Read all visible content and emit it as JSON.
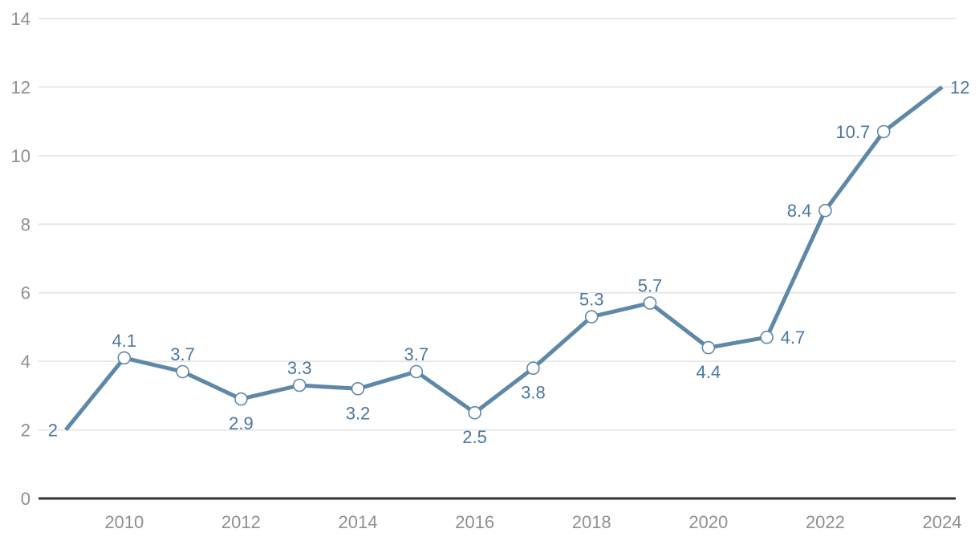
{
  "chart_data": {
    "type": "line",
    "title": "",
    "xlabel": "",
    "ylabel": "",
    "x": [
      2009,
      2010,
      2011,
      2012,
      2013,
      2014,
      2015,
      2016,
      2017,
      2018,
      2019,
      2020,
      2021,
      2022,
      2023,
      2024
    ],
    "series": [
      {
        "name": "value",
        "values": [
          2,
          4.1,
          3.7,
          2.9,
          3.3,
          3.2,
          3.7,
          2.5,
          3.8,
          5.3,
          5.7,
          4.4,
          4.7,
          8.4,
          10.7,
          12
        ]
      }
    ],
    "point_labels": [
      "2",
      "4.1",
      "3.7",
      "2.9",
      "3.3",
      "3.2",
      "3.7",
      "2.5",
      "3.8",
      "5.3",
      "5.7",
      "4.4",
      "4.7",
      "8.4",
      "10.7",
      "12"
    ],
    "label_placement": [
      "left",
      "above",
      "above",
      "below",
      "above",
      "below",
      "above",
      "below",
      "below",
      "above",
      "above",
      "below",
      "right",
      "left",
      "left",
      "right"
    ],
    "point_has_marker": [
      false,
      true,
      true,
      true,
      true,
      true,
      true,
      true,
      true,
      true,
      true,
      true,
      true,
      true,
      true,
      false
    ],
    "x_tick_years": [
      2010,
      2012,
      2014,
      2016,
      2018,
      2020,
      2022,
      2024
    ],
    "x_tick_labels": [
      "2010",
      "2012",
      "2014",
      "2016",
      "2018",
      "2020",
      "2022",
      "2024"
    ],
    "y_ticks": [
      0,
      2,
      4,
      6,
      8,
      10,
      12,
      14
    ],
    "y_tick_labels": [
      "0",
      "2",
      "4",
      "6",
      "8",
      "10",
      "12",
      "14"
    ],
    "ylim": [
      0,
      14
    ],
    "xlim": [
      2009,
      2024
    ],
    "grid": "horizontal",
    "legend": "none",
    "marker_shape": "open-circle",
    "colors": {
      "line": "#5e88a8",
      "marker_fill": "#ffffff",
      "marker_stroke": "#5e88a8",
      "data_label": "#4c779e",
      "tick_label": "#8f8f8f",
      "gridline": "#e2e2e2",
      "axis_line": "#333333",
      "background": "#ffffff"
    }
  }
}
